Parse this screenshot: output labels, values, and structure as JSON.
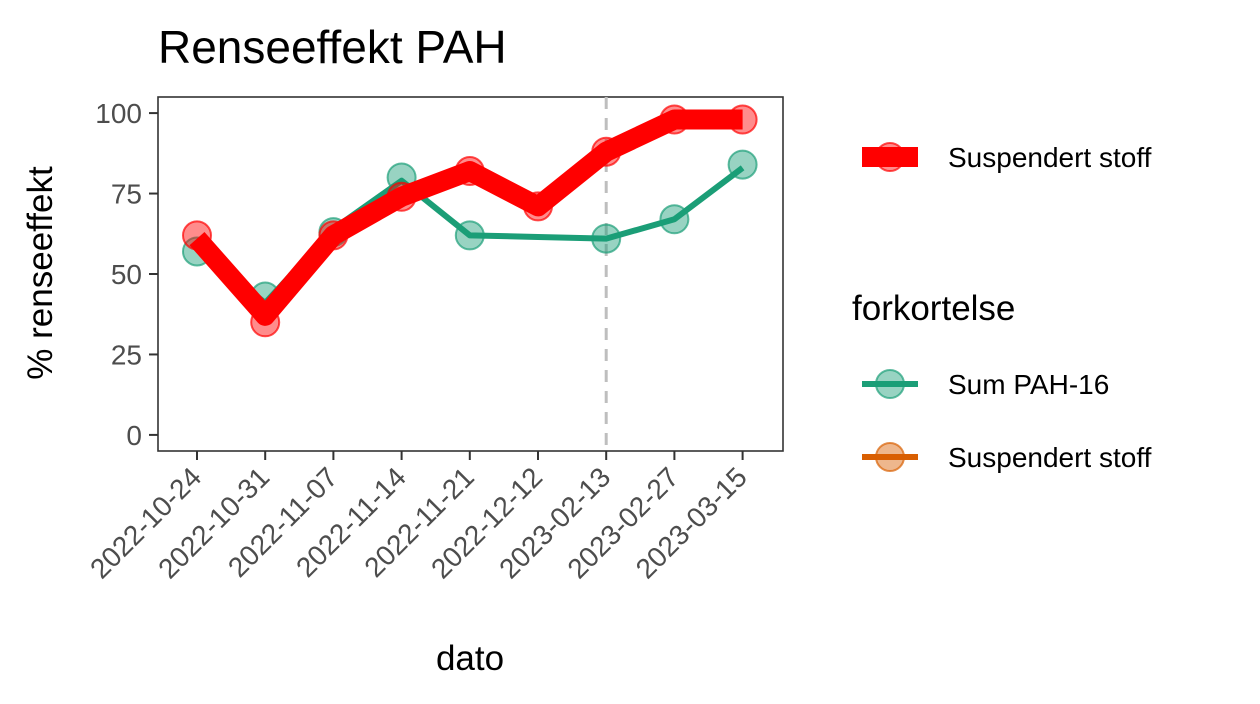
{
  "chart_data": {
    "type": "line",
    "title": "Renseeffekt PAH",
    "xlabel": "dato",
    "ylabel": "% renseeffekt",
    "categories": [
      "2022-10-24",
      "2022-10-31",
      "2022-11-07",
      "2022-11-14",
      "2022-11-21",
      "2022-12-12",
      "2023-02-13",
      "2023-02-27",
      "2023-03-15"
    ],
    "yticks": [
      0,
      25,
      50,
      75,
      100
    ],
    "ylim": [
      -5,
      105
    ],
    "vline_at": "2023-02-13",
    "grid": false,
    "legend_position": "right",
    "series": [
      {
        "name": "Sum PAH-16",
        "color": "#1b9e77",
        "values": [
          57,
          43,
          63,
          80,
          62,
          null,
          61,
          67,
          84
        ],
        "line_values": [
          58,
          41,
          64,
          79,
          62,
          61.5,
          61,
          67,
          83
        ]
      },
      {
        "name": "Suspendert stoff",
        "color": "#ff0000",
        "values": [
          62,
          35,
          62,
          74,
          82,
          71,
          88,
          98,
          98
        ],
        "line_values": [
          61,
          37,
          62,
          74,
          82,
          71,
          88,
          98,
          98
        ]
      }
    ],
    "legend": {
      "top_item": {
        "label": "Suspendert stoff",
        "color": "#ff0000"
      },
      "title": "forkortelse",
      "items": [
        {
          "label": "Sum PAH-16",
          "color": "#1b9e77"
        },
        {
          "label": "Suspendert stoff",
          "color": "#d95f02"
        }
      ]
    }
  }
}
